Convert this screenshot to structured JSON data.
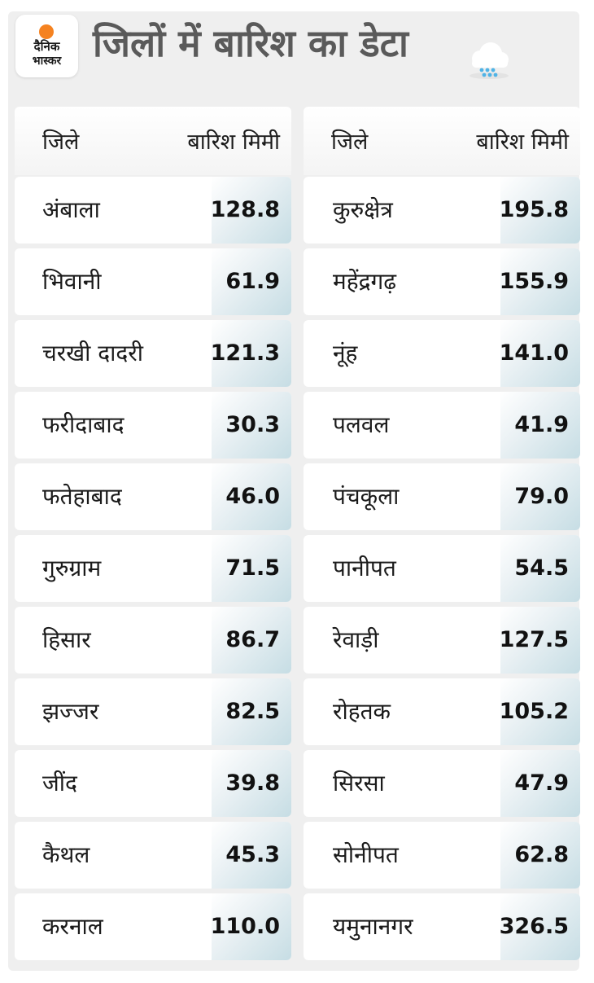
{
  "logo": {
    "line1": "दैनिक",
    "line2": "भास्कर"
  },
  "title": "जिलों में बारिश का डेटा",
  "icon": "rain-cloud-icon",
  "headers": {
    "district": "जिले",
    "rain": "बारिश मिमी"
  },
  "left_rows": [
    {
      "district": "अंबाला",
      "rain": "128.8"
    },
    {
      "district": "भिवानी",
      "rain": "61.9"
    },
    {
      "district": "चरखी दादरी",
      "rain": "121.3"
    },
    {
      "district": "फरीदाबाद",
      "rain": "30.3"
    },
    {
      "district": "फतेहाबाद",
      "rain": "46.0"
    },
    {
      "district": "गुरुग्राम",
      "rain": "71.5"
    },
    {
      "district": "हिसार",
      "rain": "86.7"
    },
    {
      "district": "झज्जर",
      "rain": "82.5"
    },
    {
      "district": "जींद",
      "rain": "39.8"
    },
    {
      "district": "कैथल",
      "rain": "45.3"
    },
    {
      "district": "करनाल",
      "rain": "110.0"
    }
  ],
  "right_rows": [
    {
      "district": "कुरुक्षेत्र",
      "rain": "195.8"
    },
    {
      "district": "महेंद्रगढ़",
      "rain": "155.9"
    },
    {
      "district": "नूंह",
      "rain": "141.0"
    },
    {
      "district": "पलवल",
      "rain": "41.9"
    },
    {
      "district": "पंचकूला",
      "rain": "79.0"
    },
    {
      "district": "पानीपत",
      "rain": "54.5"
    },
    {
      "district": "रेवाड़ी",
      "rain": "127.5"
    },
    {
      "district": "रोहतक",
      "rain": "105.2"
    },
    {
      "district": "सिरसा",
      "rain": "47.9"
    },
    {
      "district": "सोनीपत",
      "rain": "62.8"
    },
    {
      "district": "यमुनानगर",
      "rain": "326.5"
    }
  ]
}
